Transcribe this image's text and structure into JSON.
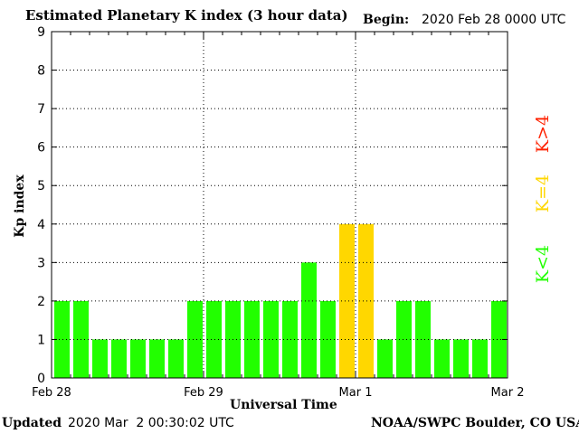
{
  "header": {
    "title": "Estimated Planetary K index (3 hour data)",
    "begin_label": "Begin:",
    "begin_value": "2020 Feb 28 0000 UTC"
  },
  "footer": {
    "updated_label": "Updated",
    "updated_value": "2020 Mar  2 00:30:02 UTC",
    "credit": "NOAA/SWPC Boulder, CO USA"
  },
  "legend": {
    "low": "K<4",
    "equal": "K=4",
    "high": "K>4"
  },
  "colors": {
    "low": "#22ff00",
    "equal": "#ffd700",
    "high": "#ff2200"
  },
  "chart_data": {
    "type": "bar",
    "title": "Estimated Planetary K index (3 hour data)",
    "xlabel": "Universal Time",
    "ylabel": "Kp index",
    "ylim": [
      0,
      9
    ],
    "yticks": [
      "0",
      "1",
      "2",
      "3",
      "4",
      "5",
      "6",
      "7",
      "8",
      "9"
    ],
    "xticks": [
      "Feb 28",
      "Feb 29",
      "Mar 1",
      "Mar 2"
    ],
    "grid": true,
    "values": [
      2,
      2,
      1,
      1,
      1,
      1,
      1,
      2,
      2,
      2,
      2,
      2,
      2,
      3,
      2,
      4,
      4,
      1,
      2,
      2,
      1,
      1,
      1,
      2
    ]
  }
}
